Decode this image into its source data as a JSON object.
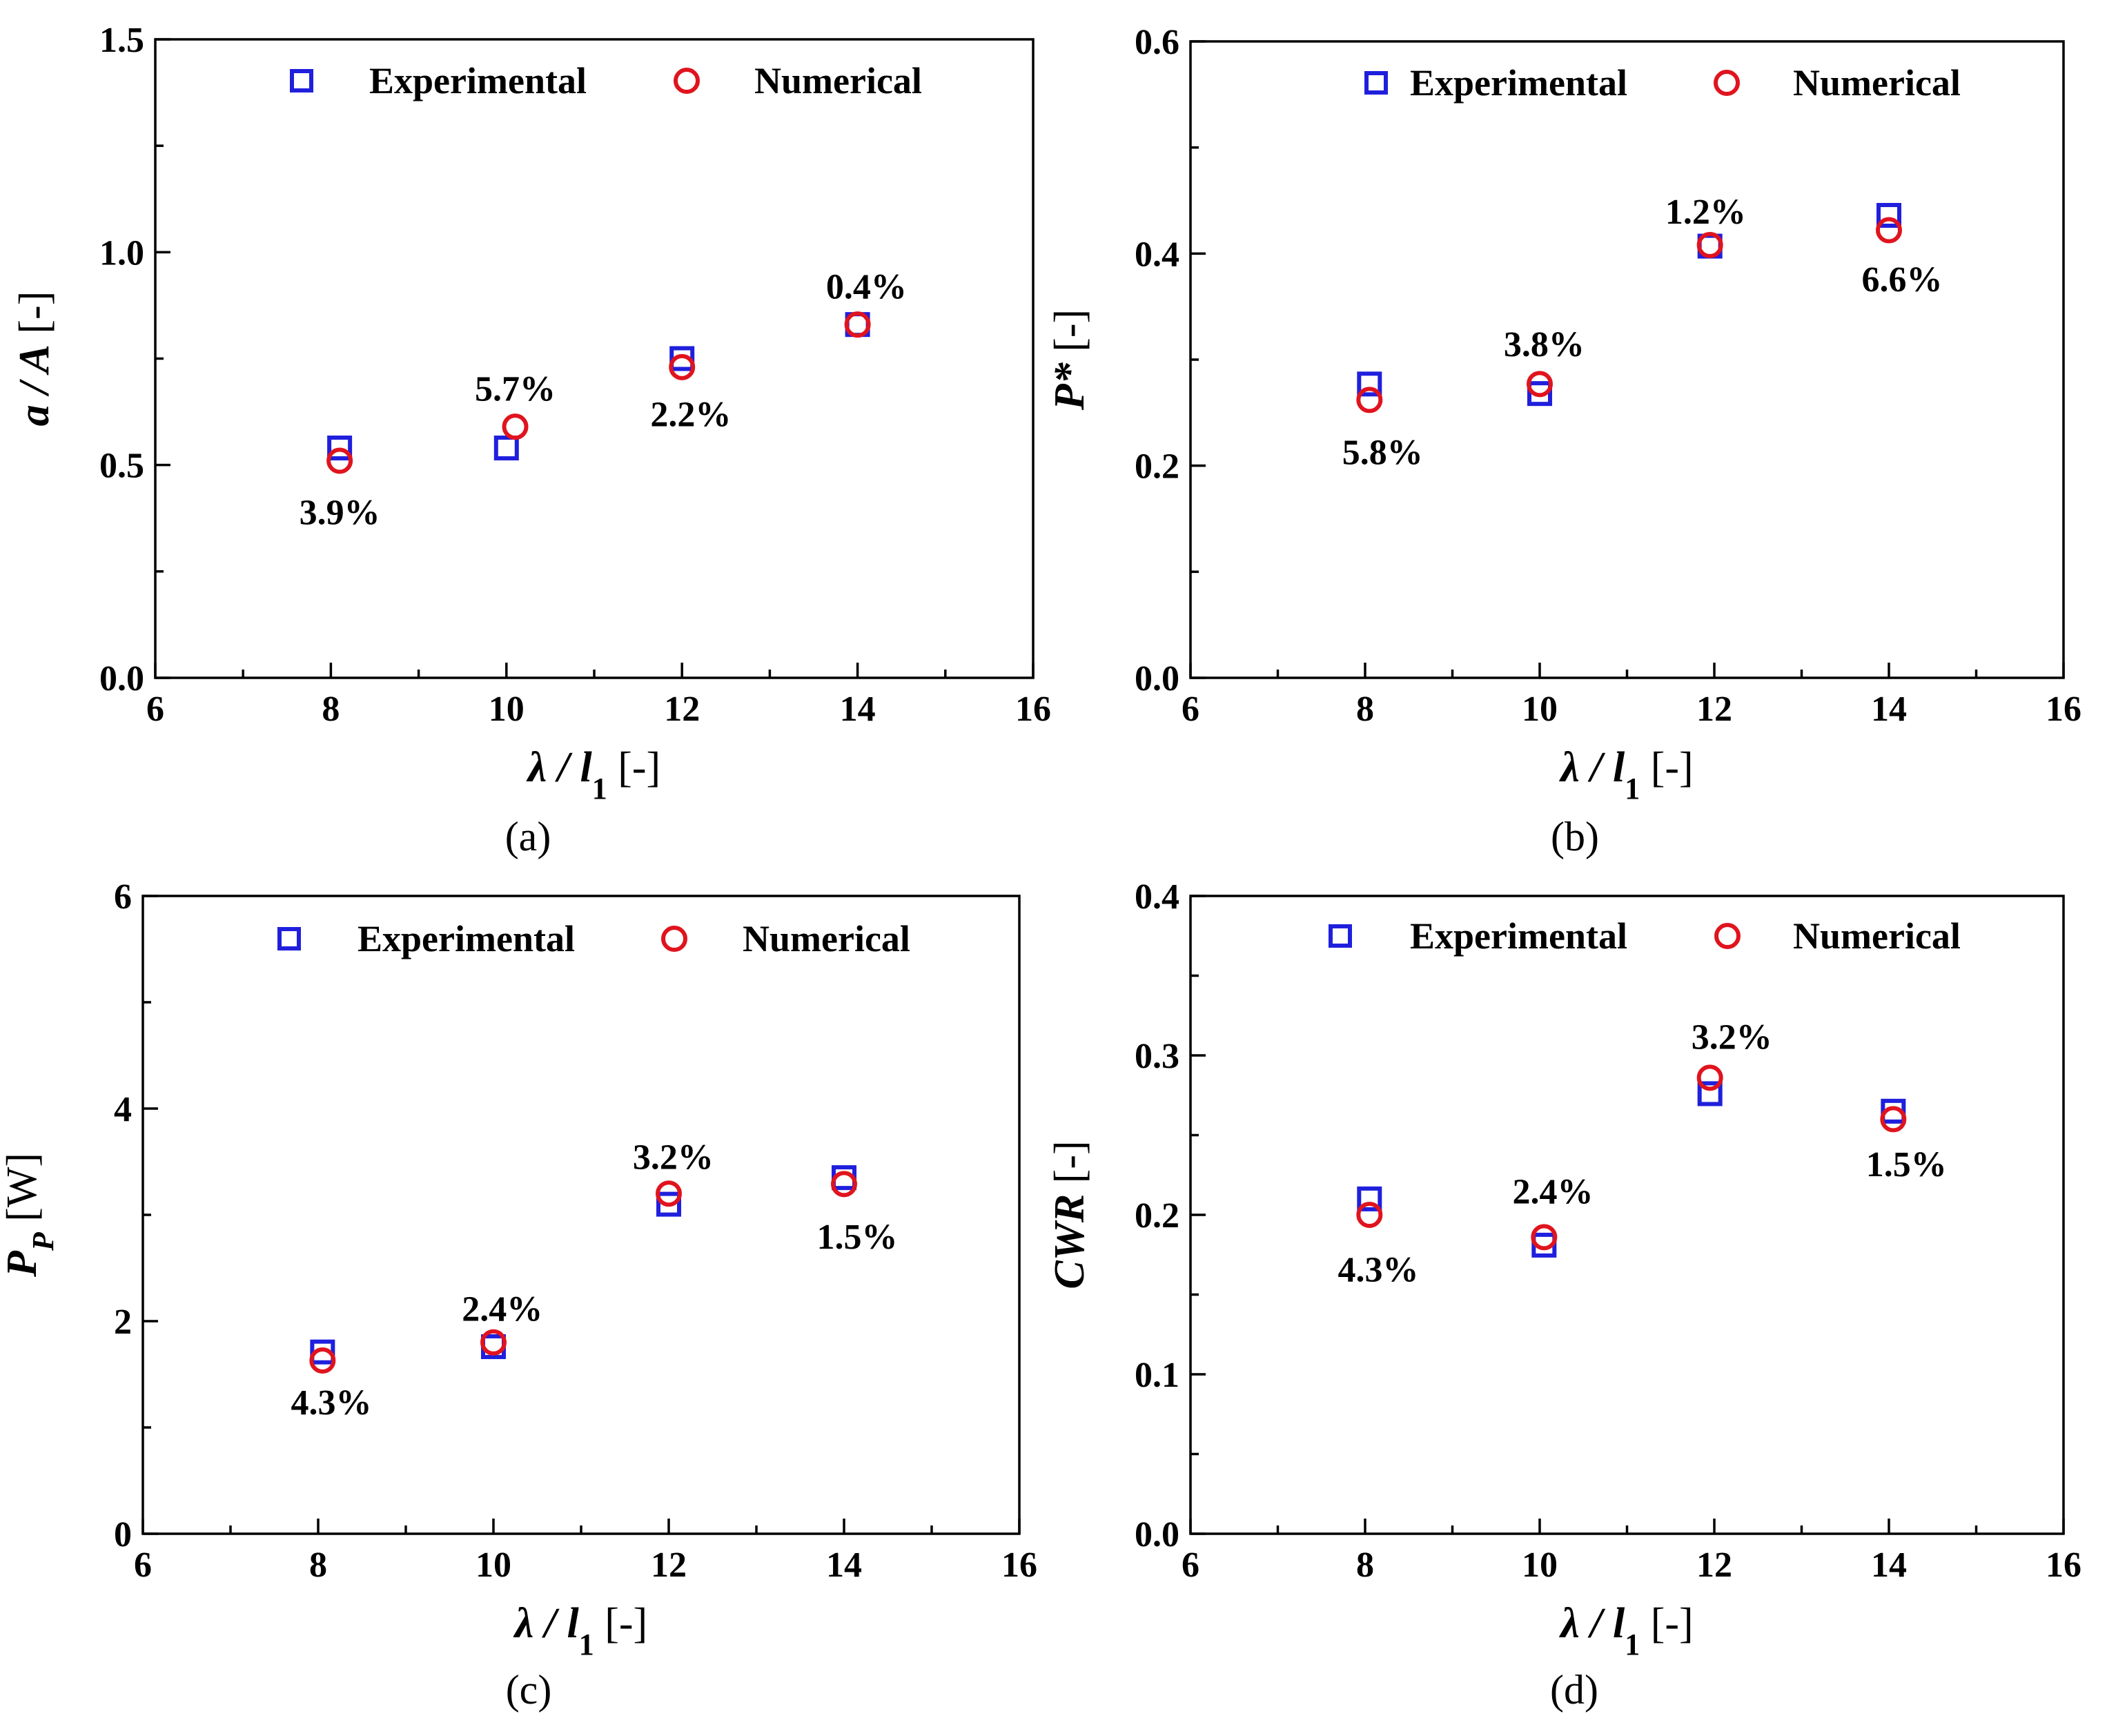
{
  "legend": {
    "experimental": "Experimental",
    "numerical": "Numerical"
  },
  "colors": {
    "experimental": "#1f1fdd",
    "numerical": "#e0141e",
    "axis": "#000000"
  },
  "chart_data": [
    {
      "id": "a",
      "type": "scatter",
      "caption": "(a)",
      "xlabel": {
        "main": "λ / l",
        "sub": "1",
        "unit": " [-]"
      },
      "ylabel": {
        "main": "a / A",
        "sub": "",
        "unit": " [-]"
      },
      "xlim": [
        6,
        16
      ],
      "ylim": [
        0,
        1.5
      ],
      "xticks": [
        "6",
        "8",
        "10",
        "12",
        "14",
        "16"
      ],
      "yticks": [
        "0.0",
        "0.5",
        "1.0",
        "1.5"
      ],
      "legend_position": "top",
      "series": [
        {
          "name": "Experimental",
          "marker": "square",
          "x": [
            8.1,
            10.0,
            12.0,
            14.0
          ],
          "y": [
            0.54,
            0.54,
            0.75,
            0.83
          ]
        },
        {
          "name": "Numerical",
          "marker": "circle",
          "x": [
            8.1,
            10.1,
            12.0,
            14.0
          ],
          "y": [
            0.51,
            0.59,
            0.73,
            0.83
          ]
        }
      ],
      "annotations": [
        {
          "text": "3.9%",
          "x": 8.1,
          "y": 0.39
        },
        {
          "text": "5.7%",
          "x": 10.1,
          "y": 0.68
        },
        {
          "text": "2.2%",
          "x": 12.1,
          "y": 0.62
        },
        {
          "text": "0.4%",
          "x": 14.1,
          "y": 0.92
        }
      ]
    },
    {
      "id": "b",
      "type": "scatter",
      "caption": "(b)",
      "xlabel": {
        "main": "λ / l",
        "sub": "1",
        "unit": " [-]"
      },
      "ylabel": {
        "main": "P*",
        "sub": "",
        "unit": " [-]"
      },
      "xlim": [
        6,
        16
      ],
      "ylim": [
        0,
        0.6
      ],
      "xticks": [
        "6",
        "8",
        "10",
        "12",
        "14",
        "16"
      ],
      "yticks": [
        "0.0",
        "0.2",
        "0.4",
        "0.6"
      ],
      "legend_position": "top",
      "series": [
        {
          "name": "Experimental",
          "marker": "square",
          "x": [
            8.05,
            10.0,
            11.95,
            14.0
          ],
          "y": [
            0.277,
            0.268,
            0.407,
            0.436
          ]
        },
        {
          "name": "Numerical",
          "marker": "circle",
          "x": [
            8.05,
            10.0,
            11.95,
            14.0
          ],
          "y": [
            0.262,
            0.277,
            0.408,
            0.422
          ]
        }
      ],
      "annotations": [
        {
          "text": "5.8%",
          "x": 8.2,
          "y": 0.213
        },
        {
          "text": "3.8%",
          "x": 10.05,
          "y": 0.315
        },
        {
          "text": "1.2%",
          "x": 11.9,
          "y": 0.44
        },
        {
          "text": "6.6%",
          "x": 14.15,
          "y": 0.376
        }
      ]
    },
    {
      "id": "c",
      "type": "scatter",
      "caption": "(c)",
      "xlabel": {
        "main": "λ / l",
        "sub": "1",
        "unit": " [-]"
      },
      "ylabel": {
        "main": "P",
        "sub": "P",
        "unit": " [W]"
      },
      "xlim": [
        6,
        16
      ],
      "ylim": [
        0,
        6
      ],
      "xticks": [
        "6",
        "8",
        "10",
        "12",
        "14",
        "16"
      ],
      "yticks": [
        "0",
        "2",
        "4",
        "6"
      ],
      "legend_position": "top",
      "series": [
        {
          "name": "Experimental",
          "marker": "square",
          "x": [
            8.05,
            10.0,
            12.0,
            14.0
          ],
          "y": [
            1.71,
            1.76,
            3.1,
            3.35
          ]
        },
        {
          "name": "Numerical",
          "marker": "circle",
          "x": [
            8.05,
            10.0,
            12.0,
            14.0
          ],
          "y": [
            1.63,
            1.8,
            3.2,
            3.29
          ]
        }
      ],
      "annotations": [
        {
          "text": "4.3%",
          "x": 8.15,
          "y": 1.24
        },
        {
          "text": "2.4%",
          "x": 10.1,
          "y": 2.12
        },
        {
          "text": "3.2%",
          "x": 12.05,
          "y": 3.55
        },
        {
          "text": "1.5%",
          "x": 14.15,
          "y": 2.8
        }
      ]
    },
    {
      "id": "d",
      "type": "scatter",
      "caption": "(d)",
      "xlabel": {
        "main": "λ / l",
        "sub": "1",
        "unit": " [-]"
      },
      "ylabel": {
        "main": "CWR",
        "sub": "",
        "unit": " [-]"
      },
      "xlim": [
        6,
        16
      ],
      "ylim": [
        0,
        0.4
      ],
      "xticks": [
        "6",
        "8",
        "10",
        "12",
        "14",
        "16"
      ],
      "yticks": [
        "0.0",
        "0.1",
        "0.2",
        "0.3",
        "0.4"
      ],
      "legend_position": "top",
      "series": [
        {
          "name": "Experimental",
          "marker": "square",
          "x": [
            8.05,
            10.05,
            11.95,
            14.05
          ],
          "y": [
            0.21,
            0.181,
            0.276,
            0.265
          ]
        },
        {
          "name": "Numerical",
          "marker": "circle",
          "x": [
            8.05,
            10.05,
            11.95,
            14.05
          ],
          "y": [
            0.2,
            0.186,
            0.286,
            0.26
          ]
        }
      ],
      "annotations": [
        {
          "text": "4.3%",
          "x": 8.15,
          "y": 0.166
        },
        {
          "text": "2.4%",
          "x": 10.15,
          "y": 0.215
        },
        {
          "text": "3.2%",
          "x": 12.2,
          "y": 0.312
        },
        {
          "text": "1.5%",
          "x": 14.2,
          "y": 0.232
        }
      ]
    }
  ]
}
